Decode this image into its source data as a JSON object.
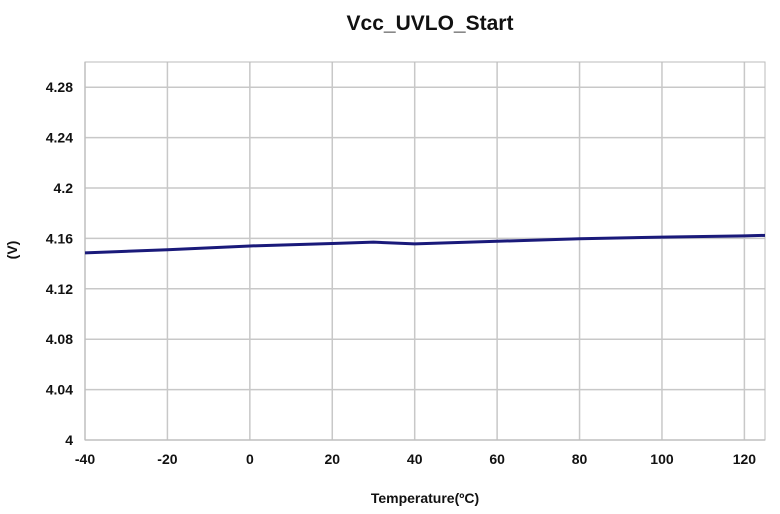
{
  "chart_data": {
    "type": "line",
    "title": "Vcc_UVLO_Start",
    "xlabel": "Temperature(ºC)",
    "ylabel": "(V)",
    "xlim": [
      -40,
      125
    ],
    "ylim": [
      4,
      4.3
    ],
    "xticks": [
      -40,
      -20,
      0,
      20,
      40,
      60,
      80,
      100,
      120
    ],
    "yticks": [
      4,
      4.04,
      4.08,
      4.12,
      4.16,
      4.2,
      4.24,
      4.28
    ],
    "grid": true,
    "series": [
      {
        "color": "#1a1a7a",
        "x": [
          -40,
          -20,
          0,
          20,
          30,
          40,
          60,
          80,
          100,
          120,
          125
        ],
        "y": [
          4.1485,
          4.151,
          4.154,
          4.156,
          4.157,
          4.1557,
          4.1577,
          4.1597,
          4.161,
          4.162,
          4.1624
        ]
      }
    ]
  }
}
